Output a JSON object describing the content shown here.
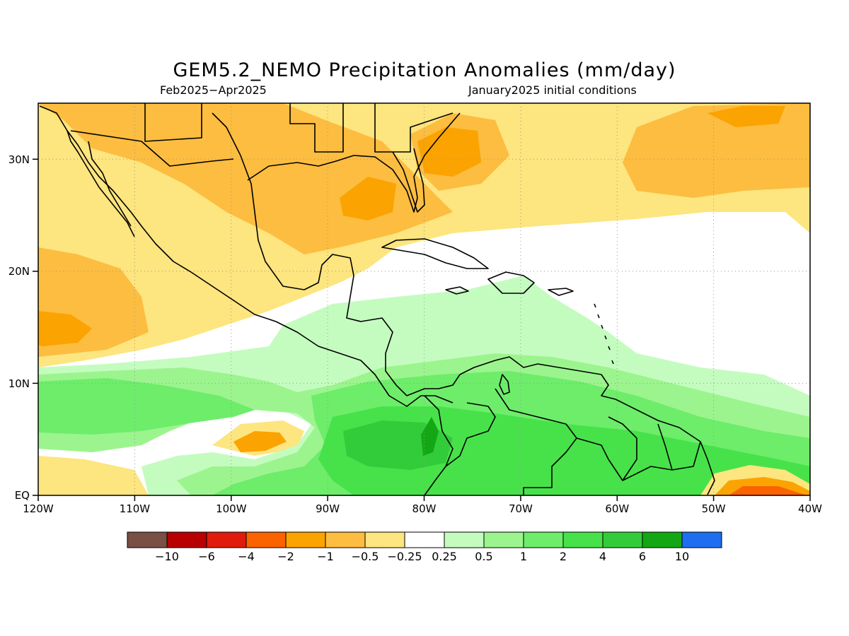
{
  "title": "GEM5.2_NEMO Precipitation Anomalies (mm/day)",
  "subtitle_left": "Feb2025−Apr2025",
  "subtitle_right": "January2025 initial conditions",
  "map": {
    "lon_range": [
      -120,
      -40
    ],
    "lat_range": [
      0,
      35
    ],
    "lon_ticks": [
      {
        "value": -120,
        "label": "120W"
      },
      {
        "value": -110,
        "label": "110W"
      },
      {
        "value": -100,
        "label": "100W"
      },
      {
        "value": -90,
        "label": "90W"
      },
      {
        "value": -80,
        "label": "80W"
      },
      {
        "value": -70,
        "label": "70W"
      },
      {
        "value": -60,
        "label": "60W"
      },
      {
        "value": -50,
        "label": "50W"
      },
      {
        "value": -40,
        "label": "40W"
      }
    ],
    "lat_ticks": [
      {
        "value": 0,
        "label": "EQ"
      },
      {
        "value": 10,
        "label": "10N"
      },
      {
        "value": 20,
        "label": "20N"
      },
      {
        "value": 30,
        "label": "30N"
      }
    ],
    "grid": true
  },
  "colorbar": {
    "colors": [
      "#7a4f45",
      "#b80000",
      "#e01b0c",
      "#fb6200",
      "#fba300",
      "#fcbd40",
      "#fde57f",
      "#ffffff",
      "#c4fcc0",
      "#9cf48e",
      "#6ded6a",
      "#47e24a",
      "#32cc3a",
      "#13a813",
      "#1e6fef"
    ],
    "labels": [
      "−10",
      "−6",
      "−4",
      "−2",
      "−1",
      "−0.5",
      "−0.25",
      "0.25",
      "0.5",
      "1",
      "2",
      "4",
      "6",
      "10"
    ]
  }
}
